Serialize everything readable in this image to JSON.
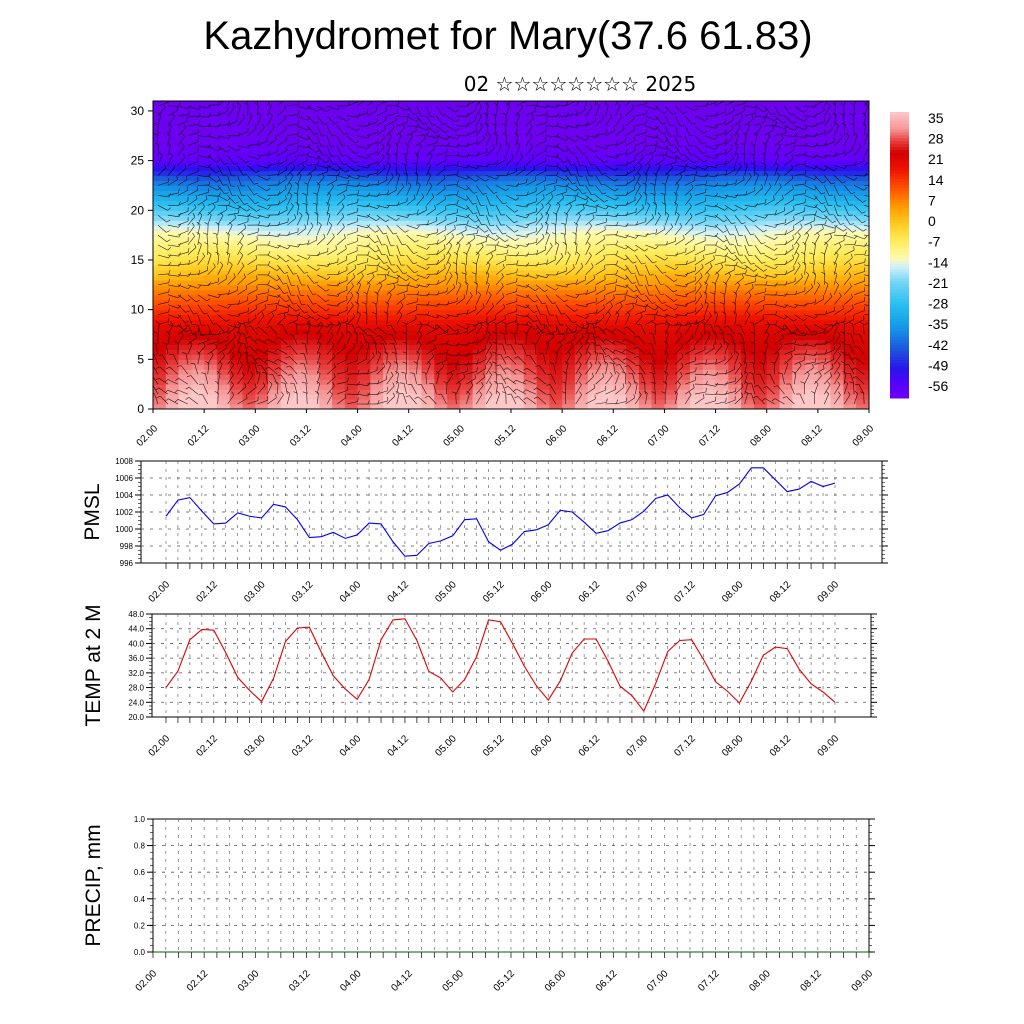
{
  "title": "Kazhydromet for Mary(37.6 61.83)",
  "subtitle": "02 ☆☆☆☆☆☆☆☆ 2025",
  "colors": {
    "pmsl_line": "#0000ee",
    "temp_line": "#e00000",
    "precip_line": "#0a5a0a",
    "frame": "#000000"
  },
  "chart_data": [
    {
      "type": "heatmap",
      "name": "cross-section",
      "x_tick_labels": [
        "02.00",
        "02.12",
        "03.00",
        "03.12",
        "04.00",
        "04.12",
        "05.00",
        "05.12",
        "06.00",
        "06.12",
        "07.00",
        "07.12",
        "08.00",
        "08.12",
        "09.00"
      ],
      "ylim": [
        0,
        31
      ],
      "y_ticks": [
        0,
        5,
        10,
        15,
        20,
        25,
        30
      ],
      "colorbar_labels": [
        "35",
        "28",
        "21",
        "14",
        "7",
        "0",
        "-7",
        "-14",
        "-21",
        "-28",
        "-35",
        "-42",
        "-49",
        "-56"
      ],
      "colorbar_range": [
        -60,
        38
      ],
      "temperature_profile": [
        {
          "level": 0,
          "value": 36
        },
        {
          "level": 3,
          "value": 30
        },
        {
          "level": 8,
          "value": 22
        },
        {
          "level": 12,
          "value": 8
        },
        {
          "level": 15,
          "value": -5
        },
        {
          "level": 18,
          "value": -14
        },
        {
          "level": 20,
          "value": -25
        },
        {
          "level": 23,
          "value": -40
        },
        {
          "level": 25,
          "value": -57
        },
        {
          "level": 27,
          "value": -60
        },
        {
          "level": 31,
          "value": -60
        }
      ],
      "surface_cycle_amplitude": 6,
      "vectors": "wind barbs"
    },
    {
      "type": "line",
      "ylabel": "PMSL",
      "ylim": [
        996,
        1008
      ],
      "y_ticks": [
        "996",
        "998",
        "1000",
        "1002",
        "1004",
        "1006",
        "1008"
      ],
      "x_tick_labels": [
        "02.00",
        "02.12",
        "03.00",
        "03.12",
        "04.00",
        "04.12",
        "05.00",
        "05.12",
        "06.00",
        "06.12",
        "07.00",
        "07.12",
        "08.00",
        "08.12",
        "09.00"
      ],
      "values": [
        1001.5,
        1003.4,
        1003.7,
        1002.1,
        1000.6,
        1000.7,
        1001.9,
        1001.5,
        1001.3,
        1002.9,
        1002.6,
        1001.1,
        999.0,
        999.1,
        999.6,
        998.9,
        999.3,
        1000.7,
        1000.6,
        998.5,
        996.8,
        996.9,
        998.3,
        998.6,
        999.2,
        1001.1,
        1001.2,
        998.5,
        997.5,
        998.2,
        999.7,
        999.9,
        1000.5,
        1002.2,
        1002.0,
        1000.8,
        999.5,
        999.8,
        1000.7,
        1001.1,
        1002.1,
        1003.6,
        1004.0,
        1002.5,
        1001.3,
        1001.7,
        1003.9,
        1004.3,
        1005.3,
        1007.2,
        1007.2,
        1005.8,
        1004.4,
        1004.7,
        1005.6,
        1005.0,
        1005.4
      ]
    },
    {
      "type": "line",
      "ylabel": "TEMP at 2 M",
      "ylim": [
        20,
        48
      ],
      "y_ticks": [
        "20.0",
        "24.0",
        "28.0",
        "32.0",
        "36.0",
        "40.0",
        "44.0",
        "48.0"
      ],
      "x_tick_labels": [
        "02.00",
        "02.12",
        "03.00",
        "03.12",
        "04.00",
        "04.12",
        "05.00",
        "05.12",
        "06.00",
        "06.12",
        "07.00",
        "07.12",
        "08.00",
        "08.12",
        "09.00"
      ],
      "values": [
        28.0,
        32.5,
        41.0,
        43.8,
        43.6,
        37.5,
        30.8,
        27.2,
        24.2,
        30.5,
        40.5,
        44.2,
        44.4,
        37.6,
        31.2,
        27.6,
        24.8,
        30.2,
        41.0,
        46.4,
        46.7,
        40.8,
        32.4,
        30.6,
        26.8,
        30.2,
        36.4,
        46.4,
        45.9,
        40.0,
        33.8,
        28.5,
        24.6,
        29.8,
        37.4,
        41.2,
        41.2,
        35.2,
        28.4,
        25.8,
        21.6,
        29.2,
        37.8,
        40.8,
        41.0,
        35.6,
        29.6,
        27.0,
        23.8,
        29.8,
        36.8,
        39.0,
        38.6,
        33.0,
        29.0,
        26.8,
        24.0
      ]
    },
    {
      "type": "line",
      "ylabel": "PRECIP, mm",
      "ylim": [
        0,
        1
      ],
      "y_ticks": [
        "0.0",
        "0.2",
        "0.4",
        "0.6",
        "0.8",
        "1.0"
      ],
      "x_tick_labels": [
        "02.00",
        "02.12",
        "03.00",
        "03.12",
        "04.00",
        "04.12",
        "05.00",
        "05.12",
        "06.00",
        "06.12",
        "07.00",
        "07.12",
        "08.00",
        "08.12",
        "09.00"
      ],
      "values": [
        0,
        0,
        0,
        0,
        0,
        0,
        0,
        0,
        0,
        0,
        0,
        0,
        0,
        0,
        0,
        0,
        0,
        0,
        0,
        0,
        0,
        0,
        0,
        0,
        0,
        0,
        0,
        0,
        0,
        0,
        0,
        0,
        0,
        0,
        0,
        0,
        0,
        0,
        0,
        0,
        0,
        0,
        0,
        0,
        0,
        0,
        0,
        0,
        0,
        0,
        0,
        0,
        0,
        0,
        0,
        0,
        0
      ]
    }
  ]
}
